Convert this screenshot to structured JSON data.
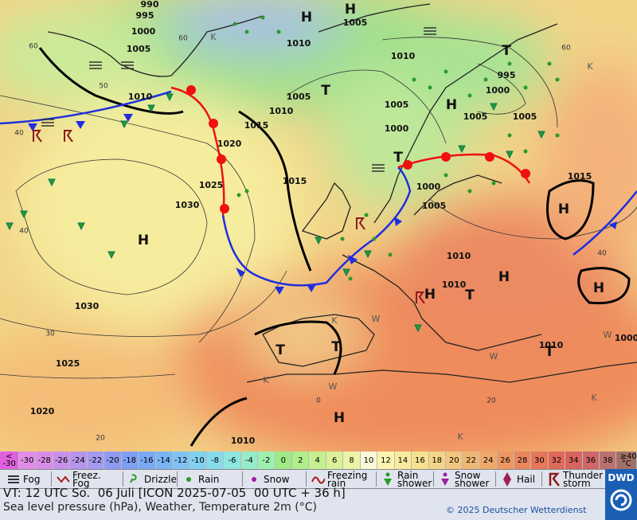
{
  "map": {
    "pressure_labels": [
      "990",
      "995",
      "1000",
      "1005",
      "1010",
      "1005",
      "1010",
      "1015",
      "1020",
      "1025",
      "1030",
      "1015",
      "1010",
      "1005",
      "1000",
      "995",
      "1000",
      "1005",
      "1005",
      "1010",
      "1005",
      "1000",
      "1005",
      "1015",
      "1010",
      "1010",
      "1010",
      "1030",
      "1025",
      "1020",
      "1010",
      "1000"
    ],
    "systems": [
      "H",
      "H",
      "H",
      "H",
      "H",
      "H",
      "H",
      "H",
      "H",
      "T",
      "T",
      "T",
      "T",
      "T",
      "T",
      "T"
    ],
    "temperature_labels": [
      "60",
      "60",
      "60",
      "50",
      "40",
      "40",
      "40",
      "30",
      "20",
      "20",
      "0"
    ],
    "markers": [
      "K",
      "K",
      "K",
      "K",
      "K",
      "K",
      "W",
      "W",
      "W",
      "W"
    ]
  },
  "legend": {
    "temperature_scale": [
      "< -30",
      "-30",
      "-28",
      "-26",
      "-24",
      "-22",
      "-20",
      "-18",
      "-16",
      "-14",
      "-12",
      "-10",
      "-8",
      "-6",
      "-4",
      "-2",
      "0",
      "2",
      "4",
      "6",
      "8",
      "10",
      "12",
      "14",
      "16",
      "18",
      "20",
      "22",
      "24",
      "26",
      "28",
      "30",
      "32",
      "34",
      "36",
      "38",
      "≥40 °C"
    ],
    "scale_colors": [
      "#e060e0",
      "#e08ce8",
      "#d98de8",
      "#c890ea",
      "#b694ec",
      "#a49af0",
      "#8f9af2",
      "#7f9ff4",
      "#79a9f5",
      "#7ab5f6",
      "#7fc3f4",
      "#80d0f0",
      "#86dceb",
      "#8ee6df",
      "#96ecc8",
      "#9ef0ae",
      "#9ceb88",
      "#b0ee8c",
      "#c5ef90",
      "#daf19a",
      "#ecf4a8",
      "#fbf8d8",
      "#fbf3b0",
      "#f8ec9c",
      "#f6e190",
      "#f4d488",
      "#f2c67e",
      "#f0b774",
      "#eea86a",
      "#ec9762",
      "#ea865c",
      "#e87658",
      "#e06a58",
      "#d86460",
      "#cf6668",
      "#bb7070",
      "#a07068"
    ],
    "weather": [
      "Fog",
      "Freez. Fog",
      "Drizzle",
      "Rain",
      "Snow",
      "Freezing rain",
      "Rain shower",
      "Snow shower",
      "Hail",
      "Thunder storm"
    ]
  },
  "footer": {
    "valid_time": "VT: 12 UTC So.  06 Juli [ICON 2025-07-05  00 UTC + 36 h]",
    "description": "Sea level pressure (hPa), Weather, Temperature 2m (°C)",
    "copyright": "© 2025 Deutscher Wetterdienst",
    "logo": "DWD"
  }
}
